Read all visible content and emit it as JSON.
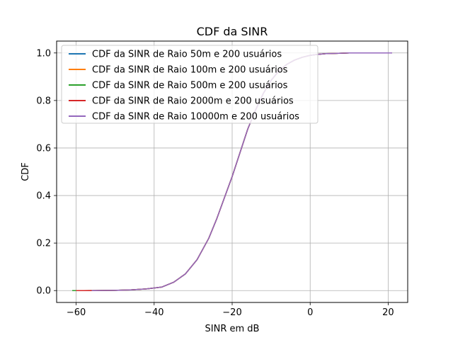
{
  "chart_data": {
    "type": "line",
    "title": "CDF da SINR",
    "xlabel": "SINR em dB",
    "ylabel": "CDF",
    "xlim": [
      -65,
      25
    ],
    "ylim": [
      -0.05,
      1.05
    ],
    "xticks": [
      -60,
      -40,
      -20,
      0,
      20
    ],
    "xtick_labels": [
      "−60",
      "−40",
      "−20",
      "0",
      "20"
    ],
    "yticks": [
      0.0,
      0.2,
      0.4,
      0.6,
      0.8,
      1.0
    ],
    "ytick_labels": [
      "0.0",
      "0.2",
      "0.4",
      "0.6",
      "0.8",
      "1.0"
    ],
    "grid": true,
    "legend_position": "upper-left",
    "series": [
      {
        "name": "CDF da SINR de Raio 50m e 200 usuários",
        "color": "#1f77b4",
        "x": [
          -58,
          -50,
          -46,
          -42,
          -38,
          -35,
          -32,
          -29,
          -26,
          -24,
          -22,
          -20,
          -18,
          -16,
          -14,
          -12,
          -10,
          -8,
          -6,
          -4,
          -2,
          0,
          2,
          4,
          6,
          8,
          10,
          14,
          18,
          21
        ],
        "y": [
          0.0,
          0.001,
          0.003,
          0.007,
          0.015,
          0.035,
          0.07,
          0.13,
          0.22,
          0.3,
          0.39,
          0.48,
          0.58,
          0.68,
          0.76,
          0.83,
          0.885,
          0.925,
          0.952,
          0.97,
          0.982,
          0.99,
          0.994,
          0.997,
          0.998,
          0.999,
          1.0,
          1.0,
          1.0,
          1.0
        ]
      },
      {
        "name": "CDF da SINR de Raio 100m e 200 usuários",
        "color": "#ff7f0e",
        "x": [
          -58,
          -50,
          -46,
          -42,
          -38,
          -35,
          -32,
          -29,
          -26,
          -24,
          -22,
          -20,
          -18,
          -16,
          -14,
          -12,
          -10,
          -8,
          -6,
          -4,
          -2,
          0,
          2,
          4,
          6,
          8,
          10,
          14,
          18,
          21
        ],
        "y": [
          0.0,
          0.001,
          0.003,
          0.007,
          0.015,
          0.035,
          0.07,
          0.13,
          0.22,
          0.3,
          0.39,
          0.48,
          0.58,
          0.68,
          0.76,
          0.83,
          0.885,
          0.925,
          0.952,
          0.97,
          0.982,
          0.99,
          0.994,
          0.997,
          0.998,
          0.999,
          1.0,
          1.0,
          1.0,
          1.0
        ]
      },
      {
        "name": "CDF da SINR de Raio 500m e 200 usuários",
        "color": "#2ca02c",
        "x": [
          -61,
          -58,
          -55,
          -50,
          -46,
          -42,
          -38,
          -35,
          -32,
          -29,
          -26,
          -24,
          -22,
          -20,
          -18,
          -16,
          -14,
          -12,
          -10,
          -8,
          -6,
          -4,
          -2,
          0,
          2,
          4,
          6,
          8,
          10,
          14,
          18,
          21
        ],
        "y": [
          0.0,
          0.0,
          0.0,
          0.001,
          0.003,
          0.007,
          0.015,
          0.035,
          0.07,
          0.13,
          0.22,
          0.3,
          0.39,
          0.48,
          0.58,
          0.68,
          0.76,
          0.83,
          0.885,
          0.925,
          0.952,
          0.97,
          0.982,
          0.99,
          0.994,
          0.997,
          0.998,
          0.999,
          1.0,
          1.0,
          1.0,
          1.0
        ]
      },
      {
        "name": "CDF da SINR de Raio 2000m e 200 usuários",
        "color": "#d62728",
        "x": [
          -60,
          -58,
          -56,
          -50,
          -46,
          -42,
          -38,
          -35,
          -32,
          -29,
          -26,
          -24,
          -22,
          -20,
          -18,
          -16,
          -14,
          -12,
          -10,
          -8,
          -6,
          -4,
          -2,
          0,
          2,
          4,
          6,
          8,
          10,
          14,
          18,
          21
        ],
        "y": [
          0.0,
          0.0,
          0.0,
          0.001,
          0.003,
          0.007,
          0.015,
          0.035,
          0.07,
          0.13,
          0.22,
          0.3,
          0.39,
          0.48,
          0.58,
          0.68,
          0.76,
          0.83,
          0.885,
          0.925,
          0.952,
          0.97,
          0.982,
          0.99,
          0.994,
          0.997,
          0.998,
          0.999,
          1.0,
          1.0,
          1.0,
          1.0
        ]
      },
      {
        "name": "CDF da SINR de Raio 10000m e 200 usuários",
        "color": "#9467bd",
        "x": [
          -56,
          -50,
          -46,
          -42,
          -38,
          -35,
          -32,
          -29,
          -26,
          -24,
          -22,
          -20,
          -18,
          -16,
          -14,
          -12,
          -10,
          -8,
          -6,
          -4,
          -2,
          0,
          2,
          4,
          6,
          8,
          10,
          14,
          18,
          21
        ],
        "y": [
          0.0,
          0.001,
          0.003,
          0.007,
          0.015,
          0.035,
          0.07,
          0.13,
          0.22,
          0.3,
          0.39,
          0.48,
          0.58,
          0.68,
          0.76,
          0.83,
          0.885,
          0.925,
          0.952,
          0.97,
          0.982,
          0.99,
          0.994,
          0.997,
          0.998,
          0.999,
          1.0,
          1.0,
          1.0,
          1.0
        ]
      }
    ]
  }
}
